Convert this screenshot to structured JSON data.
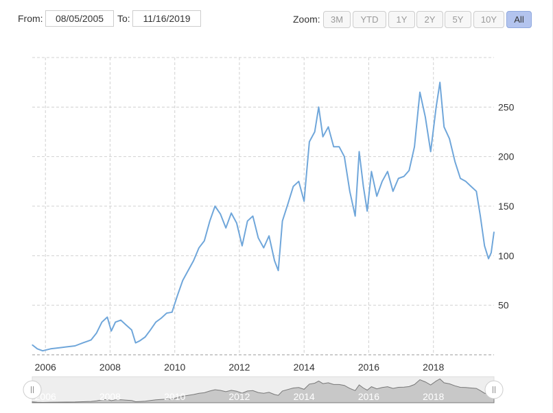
{
  "range": {
    "from_label": "From:",
    "from_value": "08/05/2005",
    "to_label": "To:",
    "to_value": "11/16/2019"
  },
  "zoom": {
    "label": "Zoom:",
    "buttons": [
      "3M",
      "YTD",
      "1Y",
      "2Y",
      "5Y",
      "10Y",
      "All"
    ],
    "active": "All"
  },
  "colors": {
    "line": "#6fa6da",
    "grid": "#d0d0d0",
    "axis_text": "#333333",
    "navigator_fill": "#c8c8c8",
    "navigator_line": "#777777",
    "navigator_bg": "#eeeeee",
    "active_button": "#b3c4ee"
  },
  "chart_data": {
    "type": "line",
    "xlabel": "",
    "ylabel": "",
    "x_ticks": [
      "2006",
      "2008",
      "2010",
      "2012",
      "2014",
      "2016",
      "2018"
    ],
    "y_ticks": [
      50,
      100,
      150,
      200,
      250
    ],
    "xlim": [
      "2005-08-05",
      "2019-11-16"
    ],
    "ylim": [
      0,
      300
    ],
    "grid": true,
    "y_axis_side": "right",
    "series": [
      {
        "x": [
          "2005-08-05",
          "2005-10-01",
          "2005-12-01",
          "2006-03-01",
          "2006-06-01",
          "2006-09-01",
          "2006-12-01",
          "2007-03-01",
          "2007-06-01",
          "2007-08-01",
          "2007-10-01",
          "2007-12-01",
          "2008-01-15",
          "2008-03-01",
          "2008-05-01",
          "2008-07-01",
          "2008-09-01",
          "2008-10-15",
          "2008-12-01",
          "2009-02-01",
          "2009-04-01",
          "2009-06-01",
          "2009-08-01",
          "2009-10-01",
          "2009-12-01",
          "2010-02-01",
          "2010-04-01",
          "2010-06-01",
          "2010-08-01",
          "2010-10-01",
          "2010-12-01",
          "2011-02-01",
          "2011-04-01",
          "2011-06-01",
          "2011-08-01",
          "2011-10-01",
          "2011-12-01",
          "2012-02-01",
          "2012-04-01",
          "2012-06-01",
          "2012-08-01",
          "2012-10-01",
          "2012-12-01",
          "2013-02-01",
          "2013-03-15",
          "2013-05-01",
          "2013-07-01",
          "2013-09-01",
          "2013-11-01",
          "2014-01-01",
          "2014-03-01",
          "2014-05-01",
          "2014-06-15",
          "2014-08-01",
          "2014-10-01",
          "2014-12-01",
          "2015-02-01",
          "2015-04-01",
          "2015-06-01",
          "2015-08-01",
          "2015-09-15",
          "2015-11-01",
          "2015-12-15",
          "2016-02-01",
          "2016-04-01",
          "2016-06-01",
          "2016-08-01",
          "2016-10-01",
          "2016-12-01",
          "2017-02-01",
          "2017-04-01",
          "2017-06-01",
          "2017-08-01",
          "2017-10-01",
          "2017-12-01",
          "2018-02-01",
          "2018-03-15",
          "2018-05-01",
          "2018-07-01",
          "2018-09-01",
          "2018-11-01",
          "2019-01-01",
          "2019-03-01",
          "2019-05-01",
          "2019-06-15",
          "2019-08-01",
          "2019-09-15",
          "2019-10-15",
          "2019-11-16"
        ],
        "y": [
          10,
          6,
          4,
          6,
          7,
          8,
          9,
          12,
          15,
          22,
          33,
          38,
          24,
          33,
          35,
          30,
          25,
          12,
          14,
          18,
          25,
          33,
          37,
          42,
          43,
          60,
          75,
          85,
          95,
          108,
          115,
          135,
          150,
          142,
          128,
          143,
          133,
          110,
          135,
          140,
          118,
          108,
          120,
          95,
          85,
          135,
          152,
          170,
          175,
          155,
          215,
          225,
          250,
          220,
          230,
          210,
          210,
          200,
          165,
          140,
          205,
          170,
          145,
          185,
          160,
          175,
          185,
          165,
          178,
          180,
          186,
          210,
          265,
          240,
          205,
          250,
          275,
          230,
          218,
          195,
          178,
          175,
          170,
          165,
          140,
          110,
          97,
          103,
          124
        ]
      }
    ]
  }
}
